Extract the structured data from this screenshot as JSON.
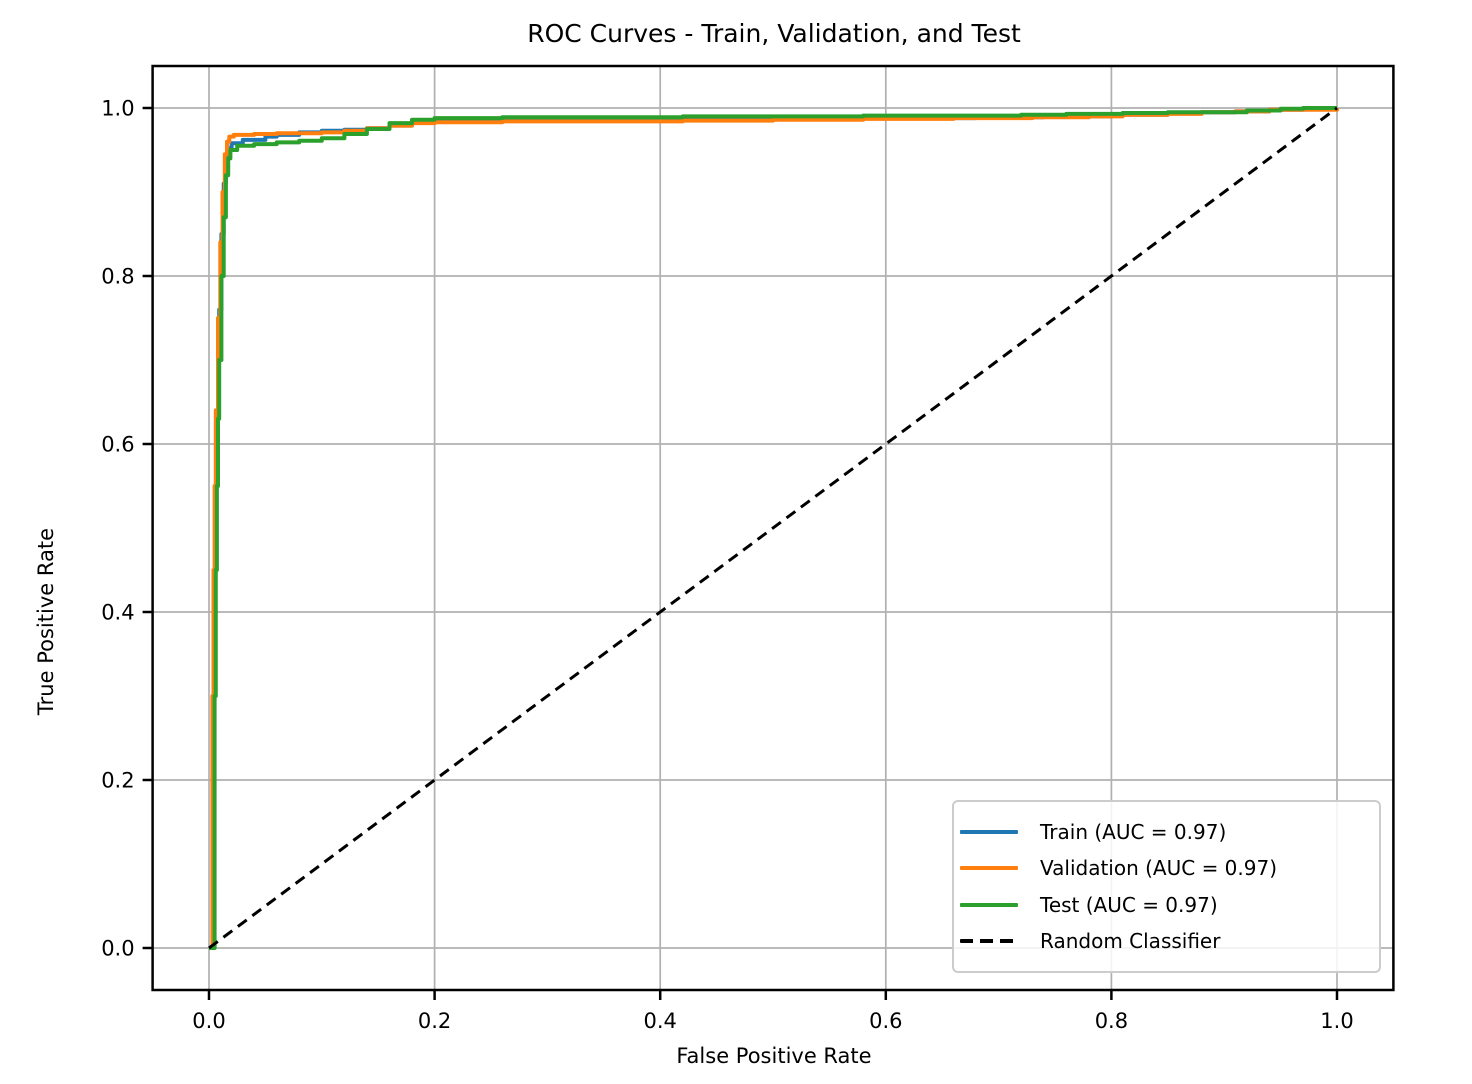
{
  "chart_data": {
    "type": "line",
    "title": "ROC Curves - Train, Validation, and Test",
    "xlabel": "False Positive Rate",
    "ylabel": "True Positive Rate",
    "xlim": [
      -0.05,
      1.05
    ],
    "ylim": [
      -0.05,
      1.05
    ],
    "x_tick_labels": [
      "0.0",
      "0.2",
      "0.4",
      "0.6",
      "0.8",
      "1.0"
    ],
    "y_tick_labels": [
      "0.0",
      "0.2",
      "0.4",
      "0.6",
      "0.8",
      "1.0"
    ],
    "grid": true,
    "legend_position": "lower right",
    "colors": {
      "grid": "#b0b0b0",
      "spine": "#000000",
      "legend_border": "#cccccc"
    },
    "series": [
      {
        "id": "train",
        "name": "Train (AUC = 0.97)",
        "auc": 0.97,
        "color": "#1f77b4",
        "style": "solid",
        "step": true,
        "points": [
          [
            0,
            0
          ],
          [
            0.004,
            0.3
          ],
          [
            0.005,
            0.45
          ],
          [
            0.006,
            0.55
          ],
          [
            0.007,
            0.63
          ],
          [
            0.008,
            0.7
          ],
          [
            0.009,
            0.76
          ],
          [
            0.011,
            0.85
          ],
          [
            0.013,
            0.91
          ],
          [
            0.015,
            0.94
          ],
          [
            0.017,
            0.952
          ],
          [
            0.02,
            0.958
          ],
          [
            0.03,
            0.962
          ],
          [
            0.05,
            0.966
          ],
          [
            0.06,
            0.968
          ],
          [
            0.08,
            0.971
          ],
          [
            0.1,
            0.973
          ],
          [
            0.12,
            0.974
          ],
          [
            0.14,
            0.976
          ],
          [
            0.16,
            0.979
          ],
          [
            0.18,
            0.983
          ],
          [
            0.2,
            0.986
          ],
          [
            0.24,
            0.987
          ],
          [
            0.3,
            0.987
          ],
          [
            0.4,
            0.988
          ],
          [
            0.5,
            0.988
          ],
          [
            0.6,
            0.988
          ],
          [
            0.68,
            0.989
          ],
          [
            0.74,
            0.99
          ],
          [
            0.8,
            0.992
          ],
          [
            0.85,
            0.994
          ],
          [
            0.88,
            0.995
          ],
          [
            0.91,
            0.996
          ],
          [
            0.94,
            0.998
          ],
          [
            0.97,
            0.999
          ],
          [
            1,
            1
          ]
        ]
      },
      {
        "id": "validation",
        "name": "Validation (AUC = 0.97)",
        "auc": 0.97,
        "color": "#ff7f0e",
        "style": "solid",
        "step": true,
        "points": [
          [
            0,
            0
          ],
          [
            0.003,
            0.3
          ],
          [
            0.004,
            0.45
          ],
          [
            0.005,
            0.55
          ],
          [
            0.006,
            0.64
          ],
          [
            0.008,
            0.75
          ],
          [
            0.01,
            0.84
          ],
          [
            0.012,
            0.9
          ],
          [
            0.014,
            0.945
          ],
          [
            0.016,
            0.96
          ],
          [
            0.018,
            0.966
          ],
          [
            0.022,
            0.968
          ],
          [
            0.04,
            0.969
          ],
          [
            0.06,
            0.97
          ],
          [
            0.08,
            0.97
          ],
          [
            0.1,
            0.971
          ],
          [
            0.12,
            0.973
          ],
          [
            0.14,
            0.976
          ],
          [
            0.16,
            0.979
          ],
          [
            0.18,
            0.982
          ],
          [
            0.2,
            0.983
          ],
          [
            0.26,
            0.984
          ],
          [
            0.34,
            0.984
          ],
          [
            0.42,
            0.985
          ],
          [
            0.5,
            0.986
          ],
          [
            0.58,
            0.987
          ],
          [
            0.66,
            0.988
          ],
          [
            0.73,
            0.989
          ],
          [
            0.78,
            0.99
          ],
          [
            0.81,
            0.992
          ],
          [
            0.85,
            0.993
          ],
          [
            0.88,
            0.995
          ],
          [
            0.91,
            0.996
          ],
          [
            0.94,
            0.998
          ],
          [
            1,
            1
          ]
        ]
      },
      {
        "id": "test",
        "name": "Test (AUC = 0.97)",
        "auc": 0.97,
        "color": "#2ca02c",
        "style": "solid",
        "step": true,
        "points": [
          [
            0,
            0
          ],
          [
            0.005,
            0.3
          ],
          [
            0.006,
            0.45
          ],
          [
            0.007,
            0.55
          ],
          [
            0.008,
            0.63
          ],
          [
            0.009,
            0.7
          ],
          [
            0.011,
            0.8
          ],
          [
            0.013,
            0.87
          ],
          [
            0.015,
            0.92
          ],
          [
            0.017,
            0.94
          ],
          [
            0.019,
            0.95
          ],
          [
            0.025,
            0.955
          ],
          [
            0.04,
            0.957
          ],
          [
            0.06,
            0.959
          ],
          [
            0.08,
            0.961
          ],
          [
            0.1,
            0.964
          ],
          [
            0.12,
            0.969
          ],
          [
            0.14,
            0.975
          ],
          [
            0.16,
            0.982
          ],
          [
            0.18,
            0.986
          ],
          [
            0.2,
            0.988
          ],
          [
            0.26,
            0.989
          ],
          [
            0.34,
            0.989
          ],
          [
            0.42,
            0.99
          ],
          [
            0.5,
            0.99
          ],
          [
            0.58,
            0.991
          ],
          [
            0.66,
            0.991
          ],
          [
            0.72,
            0.992
          ],
          [
            0.76,
            0.993
          ],
          [
            0.81,
            0.994
          ],
          [
            0.85,
            0.995
          ],
          [
            0.89,
            0.995
          ],
          [
            0.92,
            0.997
          ],
          [
            0.95,
            0.999
          ],
          [
            0.97,
            1
          ],
          [
            1,
            1
          ]
        ]
      },
      {
        "id": "random",
        "name": "Random Classifier",
        "color": "#000000",
        "style": "dashed",
        "step": false,
        "points": [
          [
            0,
            0
          ],
          [
            1,
            1
          ]
        ]
      }
    ]
  }
}
